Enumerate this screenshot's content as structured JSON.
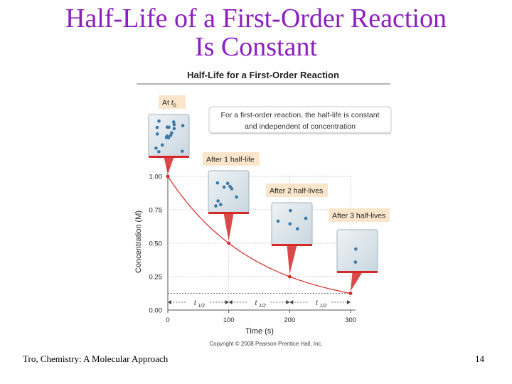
{
  "slide": {
    "title_line1": "Half-Life of a First-Order Reaction",
    "title_line2": "Is Constant",
    "footer_left": "Tro, Chemistry: A Molecular Approach",
    "page_number": "14"
  },
  "figure": {
    "title": "Half-Life for a First-Order Reaction",
    "callout": [
      "For a first-order reaction, the half-life is constant",
      "and independent of concentration"
    ],
    "copyright": "Copyright © 2008 Pearson Prentice Hall, Inc.",
    "boxes": [
      {
        "label": "At t",
        "label_sub": "0",
        "molecules": 18
      },
      {
        "label": "After 1 half-life",
        "molecules": 9
      },
      {
        "label": "After 2 half-lives",
        "molecules": 5
      },
      {
        "label": "After 3 half-lives",
        "molecules": 2
      }
    ],
    "half_life_label": "t",
    "half_life_sub": "1/2"
  },
  "chart_data": {
    "type": "line",
    "title": "Half-Life for a First-Order Reaction",
    "xlabel": "Time (s)",
    "ylabel": "Concentration (M)",
    "xlim": [
      0,
      300
    ],
    "ylim": [
      0,
      1.0
    ],
    "x_ticks": [
      "0",
      "100",
      "200",
      "300"
    ],
    "y_ticks": [
      "0.00",
      "0.25",
      "0.50",
      "0.75",
      "1.00"
    ],
    "series": [
      {
        "name": "concentration",
        "x": [
          0,
          100,
          200,
          300
        ],
        "values": [
          1.0,
          0.5,
          0.25,
          0.125
        ]
      }
    ],
    "half_life_s": 100,
    "colors": {
      "curve": "#d42a2a",
      "grid": "#b0b0b0",
      "box_fill": "#d8e3ea",
      "molecule": "#3a78a6",
      "label_fill": "#fbe6cc",
      "purple": "#8b1fbf"
    }
  }
}
